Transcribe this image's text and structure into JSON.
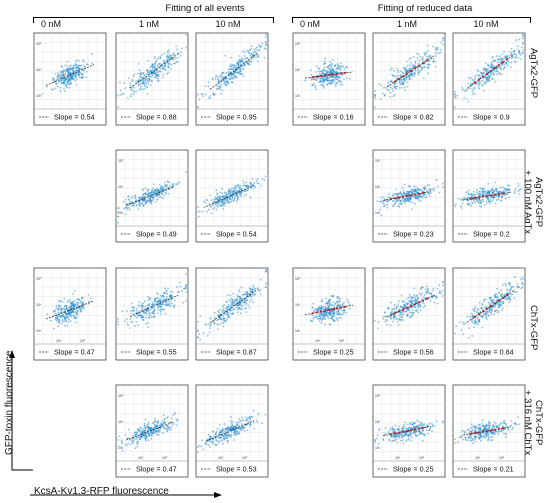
{
  "figure": {
    "groups": [
      {
        "title": "Fitting of all events"
      },
      {
        "title": "Fitting of reduced data"
      }
    ],
    "column_labels": [
      "0 nM",
      "1 nM",
      "10 nM",
      "0 nM",
      "1 nM",
      "10 nM"
    ],
    "row_labels": [
      [
        "AgTx2-GFP"
      ],
      [
        "AgTx2-GFP",
        "+ 100 nM AgTx"
      ],
      [
        "ChTx-GFP"
      ],
      [
        "ChTx-GFP",
        "+ 316 nM ChTx"
      ]
    ],
    "axes": {
      "ylabel": "GFP-toxin fluorescence",
      "xlabel": "KcsA-Kv1.3-RFP fluorescence"
    },
    "tick_labels": {
      "x": [
        "10⁴",
        "10⁵"
      ],
      "y": [
        "10⁵",
        "10⁴",
        "10³"
      ]
    },
    "legend_text": "Slope"
  },
  "chart_data": {
    "type": "scatter",
    "x_scale": "log",
    "y_scale": "log",
    "grid": true,
    "legend_placement": "bottom",
    "scatter_color": "#2f8fcf",
    "fit_line_color": "#222222",
    "reduced_points_color": "#cc1f1f",
    "panels": [
      {
        "row": 0,
        "col": 0,
        "slope": "0.54"
      },
      {
        "row": 0,
        "col": 1,
        "slope": "0.88"
      },
      {
        "row": 0,
        "col": 2,
        "slope": "0.95"
      },
      {
        "row": 0,
        "col": 3,
        "slope": "0.16"
      },
      {
        "row": 0,
        "col": 4,
        "slope": "0.82"
      },
      {
        "row": 0,
        "col": 5,
        "slope": "0.9"
      },
      {
        "row": 1,
        "col": 1,
        "slope": "0.49"
      },
      {
        "row": 1,
        "col": 2,
        "slope": "0.54"
      },
      {
        "row": 1,
        "col": 4,
        "slope": "0.23"
      },
      {
        "row": 1,
        "col": 5,
        "slope": "0.2"
      },
      {
        "row": 2,
        "col": 0,
        "slope": "0.47"
      },
      {
        "row": 2,
        "col": 1,
        "slope": "0.55"
      },
      {
        "row": 2,
        "col": 2,
        "slope": "0.87"
      },
      {
        "row": 2,
        "col": 3,
        "slope": "0.25"
      },
      {
        "row": 2,
        "col": 4,
        "slope": "0.56"
      },
      {
        "row": 2,
        "col": 5,
        "slope": "0.84"
      },
      {
        "row": 3,
        "col": 1,
        "slope": "0.47"
      },
      {
        "row": 3,
        "col": 2,
        "slope": "0.53"
      },
      {
        "row": 3,
        "col": 4,
        "slope": "0.25"
      },
      {
        "row": 3,
        "col": 5,
        "slope": "0.21"
      }
    ]
  }
}
